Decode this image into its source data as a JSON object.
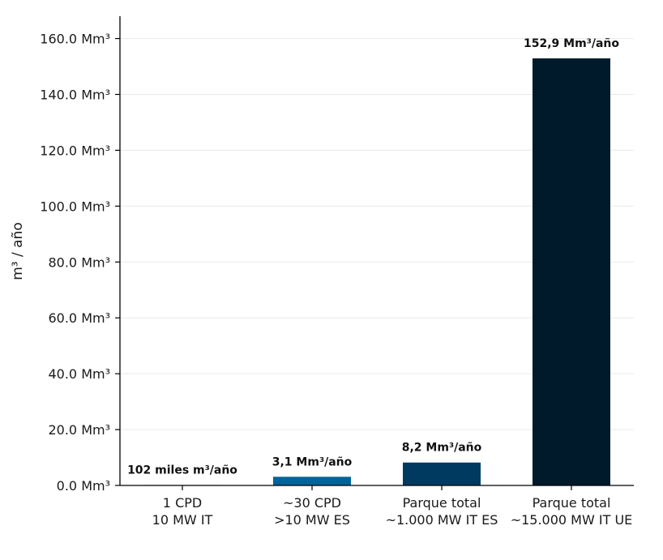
{
  "chart_data": {
    "type": "bar",
    "title": "",
    "ylabel": "m³ / año",
    "xlabel": "",
    "ylim": [
      0,
      168
    ],
    "grid": "horizontal",
    "yticks": [
      {
        "value": 0,
        "label": "0.0 Mm³"
      },
      {
        "value": 20,
        "label": "20.0 Mm³"
      },
      {
        "value": 40,
        "label": "40.0 Mm³"
      },
      {
        "value": 60,
        "label": "60.0 Mm³"
      },
      {
        "value": 80,
        "label": "80.0 Mm³"
      },
      {
        "value": 100,
        "label": "100.0 Mm³"
      },
      {
        "value": 120,
        "label": "120.0 Mm³"
      },
      {
        "value": 140,
        "label": "140.0 Mm³"
      },
      {
        "value": 160,
        "label": "160.0 Mm³"
      }
    ],
    "categories": [
      [
        "1 CPD",
        "10 MW IT"
      ],
      [
        "~30 CPD",
        ">10 MW ES"
      ],
      [
        "Parque total",
        "~1.000 MW IT ES"
      ],
      [
        "Parque total",
        "~15.000 MW IT UE"
      ]
    ],
    "values": [
      0.102,
      3.1,
      8.2,
      152.9
    ],
    "data_labels": [
      "102 miles m³/año",
      "3,1 Mm³/año",
      "8,2 Mm³/año",
      "152,9 Mm³/año"
    ],
    "colors": [
      "#6cb4df",
      "#006399",
      "#003a60",
      "#001a2c"
    ],
    "grid_color": "#e9e9e9",
    "axis_color": "#000000"
  }
}
